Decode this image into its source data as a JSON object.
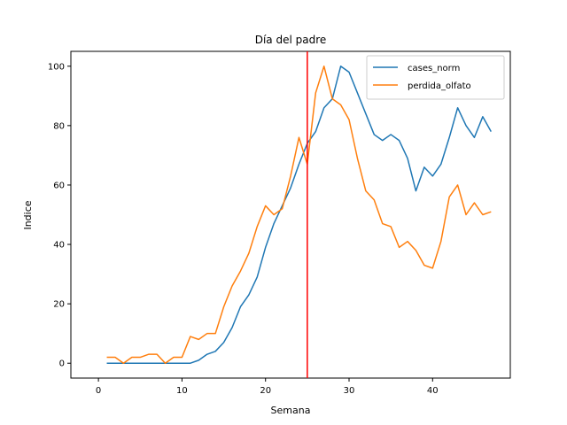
{
  "chart_data": {
    "type": "line",
    "title": "Día del padre",
    "xlabel": "Semana",
    "ylabel": "Indice",
    "xlim": [
      -3.3,
      49.3
    ],
    "ylim": [
      -5,
      105
    ],
    "xticks": [
      0,
      10,
      20,
      30,
      40
    ],
    "yticks": [
      0,
      20,
      40,
      60,
      80,
      100
    ],
    "grid": false,
    "legend_position": "top-right",
    "x": [
      1,
      2,
      3,
      4,
      5,
      6,
      7,
      8,
      9,
      10,
      11,
      12,
      13,
      14,
      15,
      16,
      17,
      18,
      19,
      20,
      21,
      22,
      23,
      24,
      25,
      26,
      27,
      28,
      29,
      30,
      31,
      32,
      33,
      34,
      35,
      36,
      37,
      38,
      39,
      40,
      41,
      42,
      43,
      44,
      45,
      46,
      47
    ],
    "series": [
      {
        "name": "cases_norm",
        "color": "#1f77b4",
        "values": [
          0,
          0,
          0,
          0,
          0,
          0,
          0,
          0,
          0,
          0,
          0,
          1,
          3,
          4,
          7,
          12,
          19,
          23,
          29,
          39,
          47,
          53,
          59,
          67,
          74,
          78,
          86,
          89,
          100,
          98,
          91,
          84,
          77,
          75,
          77,
          75,
          69,
          58,
          66,
          63,
          67,
          76,
          86,
          80,
          76,
          83,
          78
        ]
      },
      {
        "name": "perdida_olfato",
        "color": "#ff7f0e",
        "values": [
          2,
          2,
          0,
          2,
          2,
          3,
          3,
          0,
          2,
          2,
          9,
          8,
          10,
          10,
          19,
          26,
          31,
          37,
          46,
          53,
          50,
          52,
          63,
          76,
          67,
          91,
          100,
          89,
          87,
          82,
          69,
          58,
          55,
          47,
          46,
          39,
          41,
          38,
          33,
          32,
          41,
          56,
          60,
          50,
          54,
          50,
          51
        ]
      }
    ],
    "vline": {
      "x": 25,
      "color": "#ff0000"
    }
  }
}
